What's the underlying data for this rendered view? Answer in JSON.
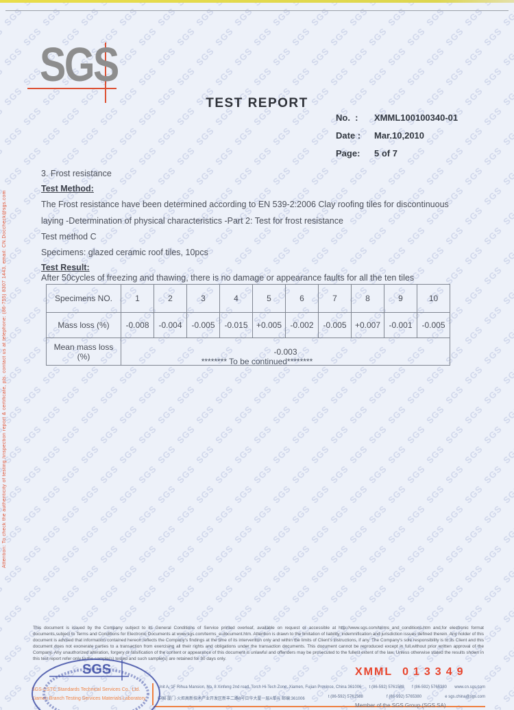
{
  "page": {
    "title": "TEST REPORT"
  },
  "logo": {
    "text": "SGS"
  },
  "watermark": {
    "text": "SGS"
  },
  "meta": {
    "no_label": "No.  :",
    "no_value": "XMML100100340-01",
    "date_label": "Date :",
    "date_value": "Mar.10,2010",
    "page_label": "Page:",
    "page_value": "5 of 7"
  },
  "body": {
    "section_title": "3. Frost resistance",
    "method_heading": "Test Method:",
    "method_line1": "The Frost resistance have been determined according to EN 539-2:2006 Clay roofing tiles for discontinuous",
    "method_line2": "laying -Determination of physical characteristics -Part 2: Test for frost resistance",
    "method_line3": "Test method C",
    "specimens_line": "Specimens: glazed ceramic roof tiles, 10pcs",
    "result_heading": "Test Result:",
    "result_line": "After 50cycles of freezing and thawing, there is no damage or appearance faults for all the ten tiles",
    "to_be_continued": "******** To be continued********"
  },
  "table": {
    "header_label": "Specimens NO.",
    "specimen_numbers": [
      "1",
      "2",
      "3",
      "4",
      "5",
      "6",
      "7",
      "8",
      "9",
      "10"
    ],
    "mass_loss_label": "Mass loss (%)",
    "mass_loss_values": [
      "-0.008",
      "-0.004",
      "-0.005",
      "-0.015",
      "+0.005",
      "-0.002",
      "-0.005",
      "+0.007",
      "-0.001",
      "-0.005"
    ],
    "mean_label": "Mean mass loss (%)",
    "mean_value": "-0.003"
  },
  "sidebar_note": "Attention: To check the authenticity of testing /inspection report & certificate, pls. contact us at telephone: (86-755) 8307 1443, email: CN.Doccheck@sgs.com",
  "footer": {
    "legal_text": "This document is issued by the Company subject to its General Conditions of Service printed overleaf, available on request or accessible at http://www.sgs.com/terms_and_conditions.htm and,for electronic format documents,subject to Terms and Conditions for Electronic Documents at www.sgs.com/terms_e-document.htm. Attention is drawn to the limitation of liability, indemnification and jurisdiction issues defined therein. Any holder of this document is advised that information contained hereon reflects the Company's findings  at the time of its intervention only and within the limits of Client's  instructions,  if any.  The Company's  sole  responsibility  is to its Client and this document does not exonerate parties to a transaction from exercising all their rights and obligations under the transaction documents. This document cannot be reproduced except in full,without prior written approval of the Company. Any unauthorized alteration, forgery or falsification of the content or appearance of this document is unlawful and offenders may be prosecuted to the fullest extent of the law. Unless otherwise stated the results shown in this test report refer only to the sample(s) tested and such sample(s) are retained for 30 days only.",
    "company_line1": "SGS-CSTC Standards Technical Services Co., Ltd.",
    "company_line2": "Xiamen Branch Testing Services Materials Laboratory",
    "stamp_text": "SGS",
    "address_en": "Unit A, 1F Rihua Mansion, No. 8 Xinfeng 2nd road, Torch Hi-Tech Zone, Xiamen, Fujian Province, China 361006",
    "tel1": "t   (86-592) 5761588",
    "fax1": "f   (86-592) 5765380",
    "web": "www.cn.sgs.com",
    "address_cn": "中国·厦门·火炬高新技术产业开发区新丰二路8号日华大厦一层A单元  邮编:361006",
    "tel2": "t   (86-592) 5761588",
    "fax2": "f   (86-592) 5765380",
    "email": "e  sgs.china@sgs.com",
    "serial_prefix": "XMML",
    "serial_number": "013349",
    "member_text": "Member of the SGS Group (SGS SA)"
  },
  "colors": {
    "page_bg": "#edf1f9",
    "watermark": "#abb6d8",
    "logo_gray": "#8d8d8d",
    "accent_red": "#dd5134",
    "stamp_blue": "#3f4fa6",
    "footer_orange": "#ef8040",
    "serial_red": "#e8432a"
  }
}
